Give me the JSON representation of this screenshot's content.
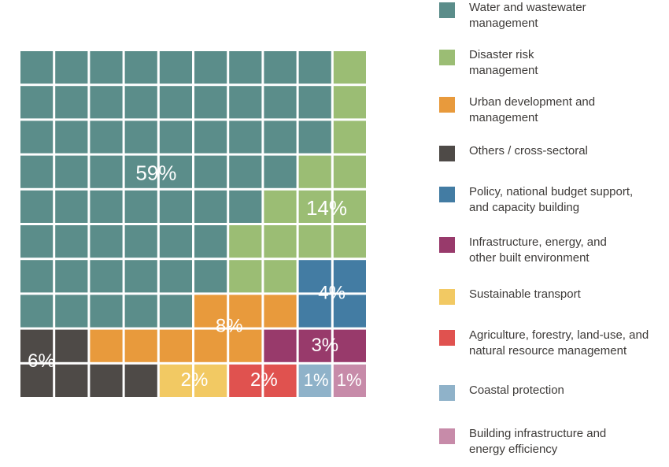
{
  "chart_data": {
    "type": "waffle",
    "grid": {
      "rows": 10,
      "cols": 10
    },
    "series": [
      {
        "name": "Water and wastewater\nmanagement",
        "value": 59,
        "label": "59%",
        "color": "#5b8d8a"
      },
      {
        "name": "Disaster risk\nmanagement",
        "value": 14,
        "label": "14%",
        "color": "#9bbd74"
      },
      {
        "name": "Urban development and\nmanagement",
        "value": 8,
        "label": "8%",
        "color": "#e89a3c"
      },
      {
        "name": "Others / cross-sectoral",
        "value": 6,
        "label": "6%",
        "color": "#4e4a47"
      },
      {
        "name": "Policy, national budget support,\nand capacity building",
        "value": 4,
        "label": "4%",
        "color": "#437ca3"
      },
      {
        "name": "Infrastructure, energy, and\nother built environment",
        "value": 3,
        "label": "3%",
        "color": "#983a6b"
      },
      {
        "name": "Sustainable transport",
        "value": 2,
        "label": "2%",
        "color": "#f2c963"
      },
      {
        "name": "Agriculture, forestry, land-use, and\nnatural resource management",
        "value": 2,
        "label": "2%",
        "color": "#e0524f"
      },
      {
        "name": "Coastal protection",
        "value": 1,
        "label": "1%",
        "color": "#8fb2c9"
      },
      {
        "name": "Building infrastructure and\nenergy efficiency",
        "value": 1,
        "label": "1%",
        "color": "#c78ba9"
      }
    ],
    "cells": [
      [
        0,
        0,
        0,
        0,
        0,
        0,
        0,
        0,
        0,
        1
      ],
      [
        0,
        0,
        0,
        0,
        0,
        0,
        0,
        0,
        0,
        1
      ],
      [
        0,
        0,
        0,
        0,
        0,
        0,
        0,
        0,
        0,
        1
      ],
      [
        0,
        0,
        0,
        0,
        0,
        0,
        0,
        0,
        1,
        1
      ],
      [
        0,
        0,
        0,
        0,
        0,
        0,
        0,
        1,
        1,
        1
      ],
      [
        0,
        0,
        0,
        0,
        0,
        0,
        1,
        1,
        1,
        1
      ],
      [
        0,
        0,
        0,
        0,
        0,
        0,
        1,
        1,
        4,
        4
      ],
      [
        0,
        0,
        0,
        0,
        0,
        2,
        2,
        2,
        4,
        4
      ],
      [
        3,
        3,
        2,
        2,
        2,
        2,
        2,
        5,
        5,
        5
      ],
      [
        3,
        3,
        3,
        3,
        6,
        6,
        7,
        7,
        8,
        9
      ]
    ],
    "legend_position": "right"
  }
}
